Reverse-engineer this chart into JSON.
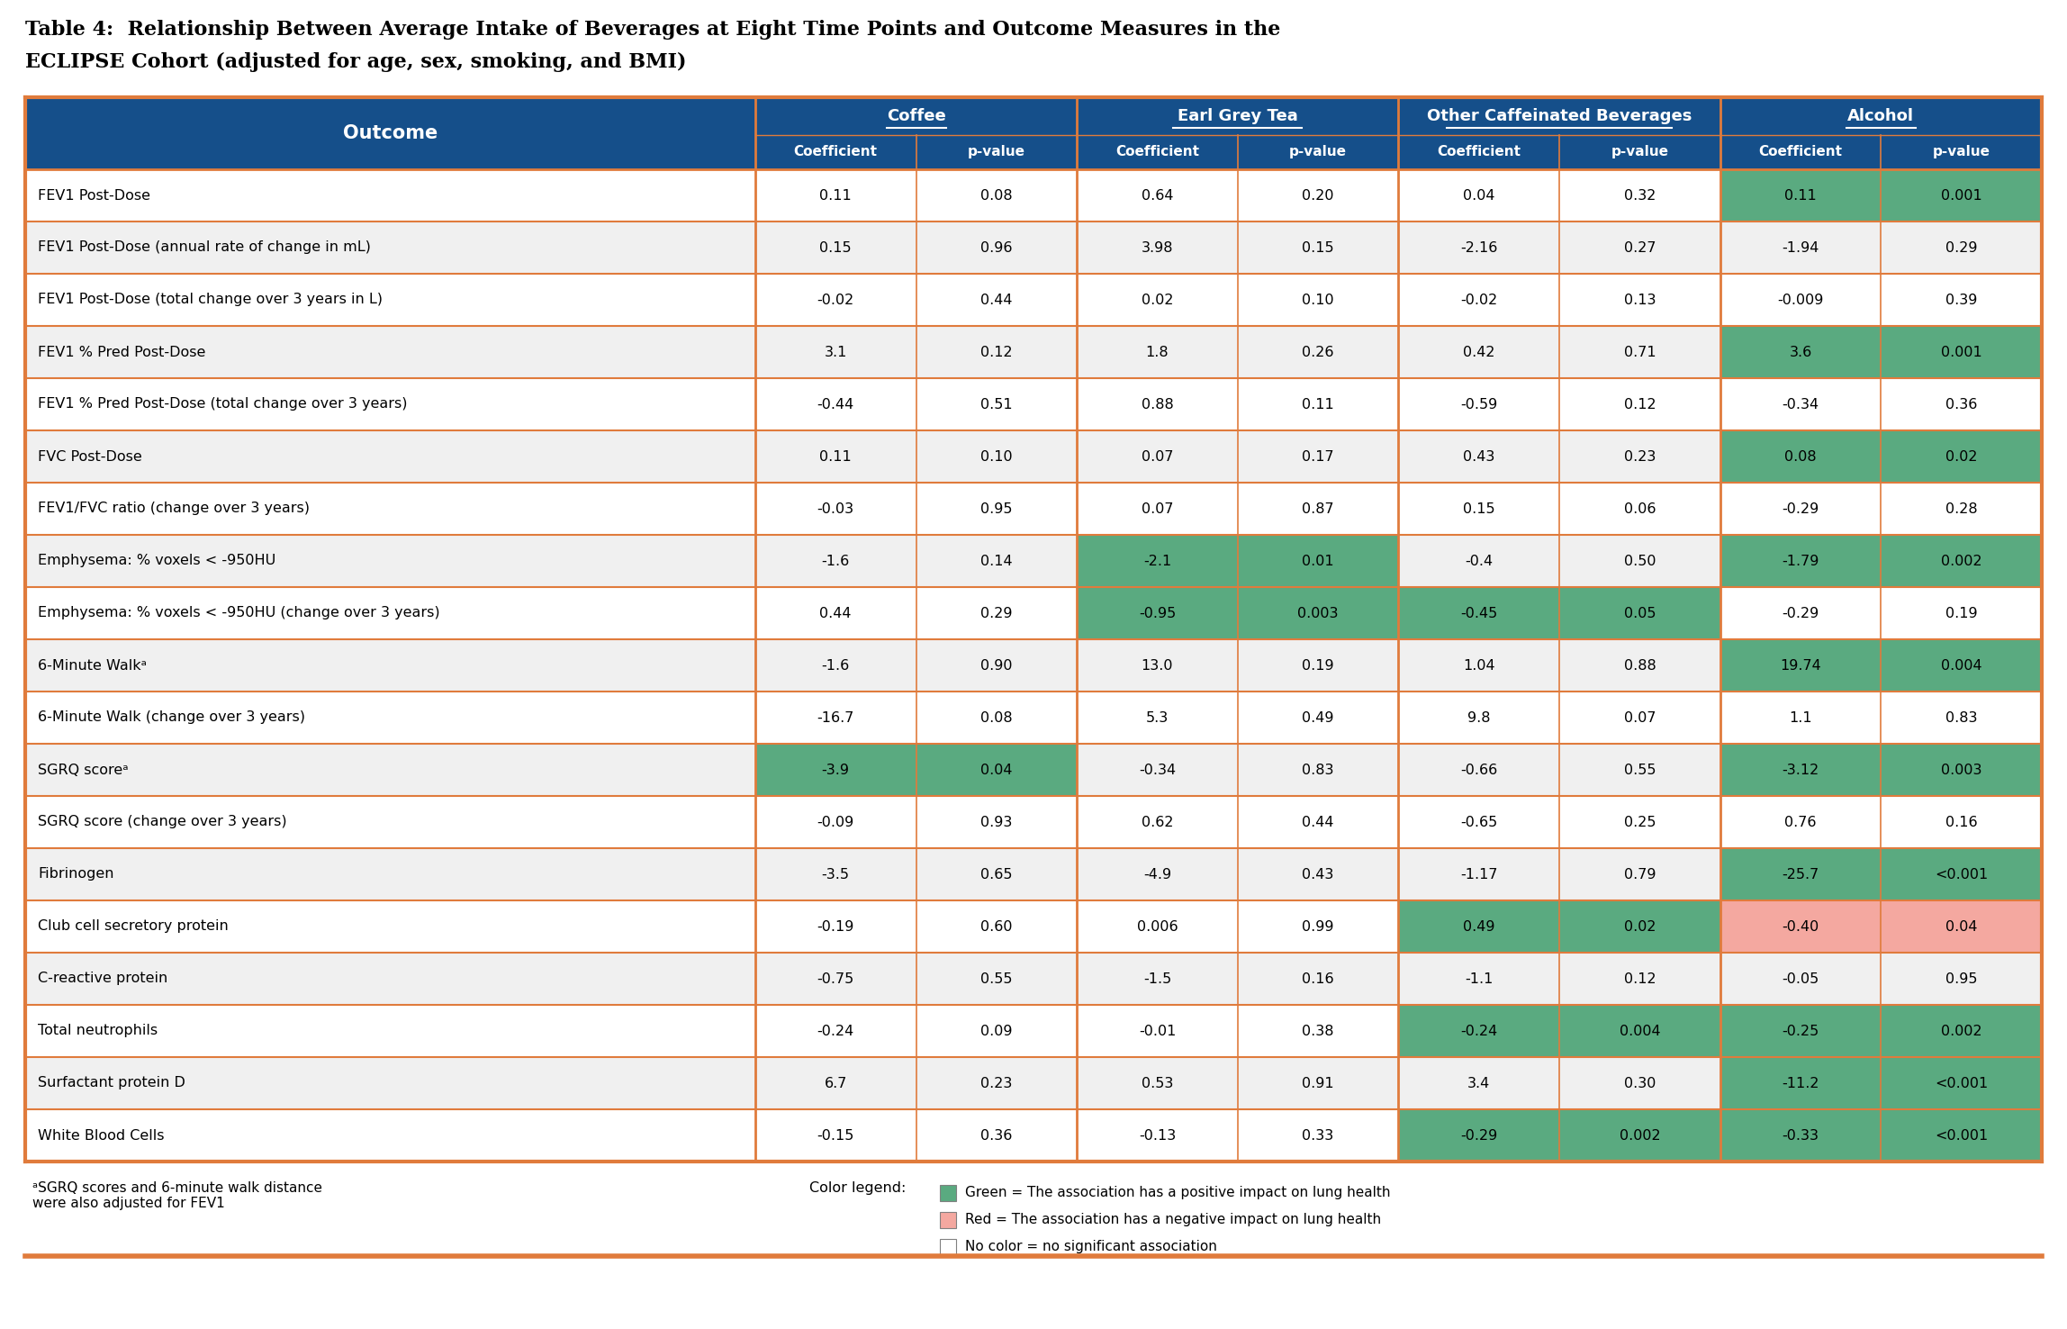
{
  "title_line1": "Table 4:  Relationship Between Average Intake of Beverages at Eight Time Points and Outcome Measures in the",
  "title_line2": "ECLIPSE Cohort (adjusted for age, sex, smoking, and BMI)",
  "header_bg": "#154f8a",
  "header_text_color": "#ffffff",
  "row_bg_odd": "#ffffff",
  "row_bg_even": "#f0f0f0",
  "border_color": "#e07b3c",
  "green_color": "#5aaa80",
  "red_color": "#f4a8a0",
  "col_groups": [
    "Coffee",
    "Earl Grey Tea",
    "Other Caffeinated Beverages",
    "Alcohol"
  ],
  "sub_cols": [
    "Coefficient",
    "p-value",
    "Coefficient",
    "p-value",
    "Coefficient",
    "p-value",
    "Coefficient",
    "p-value"
  ],
  "outcome_col": "Outcome",
  "rows": [
    {
      "outcome": "FEV1 Post-Dose",
      "vals": [
        "0.11",
        "0.08",
        "0.64",
        "0.20",
        "0.04",
        "0.32",
        "0.11",
        "0.001"
      ],
      "bgs": [
        "",
        "",
        "",
        "",
        "",
        "",
        "green",
        "green"
      ]
    },
    {
      "outcome": "FEV1 Post-Dose (annual rate of change in mL)",
      "vals": [
        "0.15",
        "0.96",
        "3.98",
        "0.15",
        "-2.16",
        "0.27",
        "-1.94",
        "0.29"
      ],
      "bgs": [
        "",
        "",
        "",
        "",
        "",
        "",
        "",
        ""
      ]
    },
    {
      "outcome": "FEV1 Post-Dose (total change over 3 years in L)",
      "vals": [
        "-0.02",
        "0.44",
        "0.02",
        "0.10",
        "-0.02",
        "0.13",
        "-0.009",
        "0.39"
      ],
      "bgs": [
        "",
        "",
        "",
        "",
        "",
        "",
        "",
        ""
      ]
    },
    {
      "outcome": "FEV1 % Pred Post-Dose",
      "vals": [
        "3.1",
        "0.12",
        "1.8",
        "0.26",
        "0.42",
        "0.71",
        "3.6",
        "0.001"
      ],
      "bgs": [
        "",
        "",
        "",
        "",
        "",
        "",
        "green",
        "green"
      ]
    },
    {
      "outcome": "FEV1 % Pred Post-Dose (total change over 3 years)",
      "vals": [
        "-0.44",
        "0.51",
        "0.88",
        "0.11",
        "-0.59",
        "0.12",
        "-0.34",
        "0.36"
      ],
      "bgs": [
        "",
        "",
        "",
        "",
        "",
        "",
        "",
        ""
      ]
    },
    {
      "outcome": "FVC Post-Dose",
      "vals": [
        "0.11",
        "0.10",
        "0.07",
        "0.17",
        "0.43",
        "0.23",
        "0.08",
        "0.02"
      ],
      "bgs": [
        "",
        "",
        "",
        "",
        "",
        "",
        "green",
        "green"
      ]
    },
    {
      "outcome": "FEV1/FVC ratio (change over 3 years)",
      "vals": [
        "-0.03",
        "0.95",
        "0.07",
        "0.87",
        "0.15",
        "0.06",
        "-0.29",
        "0.28"
      ],
      "bgs": [
        "",
        "",
        "",
        "",
        "",
        "",
        "",
        ""
      ]
    },
    {
      "outcome": "Emphysema: % voxels < -950HU",
      "vals": [
        "-1.6",
        "0.14",
        "-2.1",
        "0.01",
        "-0.4",
        "0.50",
        "-1.79",
        "0.002"
      ],
      "bgs": [
        "",
        "",
        "green",
        "green",
        "",
        "",
        "green",
        "green"
      ]
    },
    {
      "outcome": "Emphysema: % voxels < -950HU (change over 3 years)",
      "vals": [
        "0.44",
        "0.29",
        "-0.95",
        "0.003",
        "-0.45",
        "0.05",
        "-0.29",
        "0.19"
      ],
      "bgs": [
        "",
        "",
        "green",
        "green",
        "green",
        "green",
        "",
        ""
      ]
    },
    {
      "outcome": "6-Minute Walkᵃ",
      "vals": [
        "-1.6",
        "0.90",
        "13.0",
        "0.19",
        "1.04",
        "0.88",
        "19.74",
        "0.004"
      ],
      "bgs": [
        "",
        "",
        "",
        "",
        "",
        "",
        "green",
        "green"
      ]
    },
    {
      "outcome": "6-Minute Walk (change over 3 years)",
      "vals": [
        "-16.7",
        "0.08",
        "5.3",
        "0.49",
        "9.8",
        "0.07",
        "1.1",
        "0.83"
      ],
      "bgs": [
        "",
        "",
        "",
        "",
        "",
        "",
        "",
        ""
      ]
    },
    {
      "outcome": "SGRQ scoreᵃ",
      "vals": [
        "-3.9",
        "0.04",
        "-0.34",
        "0.83",
        "-0.66",
        "0.55",
        "-3.12",
        "0.003"
      ],
      "bgs": [
        "green",
        "green",
        "",
        "",
        "",
        "",
        "green",
        "green"
      ]
    },
    {
      "outcome": "SGRQ score (change over 3 years)",
      "vals": [
        "-0.09",
        "0.93",
        "0.62",
        "0.44",
        "-0.65",
        "0.25",
        "0.76",
        "0.16"
      ],
      "bgs": [
        "",
        "",
        "",
        "",
        "",
        "",
        "",
        ""
      ]
    },
    {
      "outcome": "Fibrinogen",
      "vals": [
        "-3.5",
        "0.65",
        "-4.9",
        "0.43",
        "-1.17",
        "0.79",
        "-25.7",
        "<0.001"
      ],
      "bgs": [
        "",
        "",
        "",
        "",
        "",
        "",
        "green",
        "green"
      ]
    },
    {
      "outcome": "Club cell secretory protein",
      "vals": [
        "-0.19",
        "0.60",
        "0.006",
        "0.99",
        "0.49",
        "0.02",
        "-0.40",
        "0.04"
      ],
      "bgs": [
        "",
        "",
        "",
        "",
        "green",
        "green",
        "red",
        "red"
      ]
    },
    {
      "outcome": "C-reactive protein",
      "vals": [
        "-0.75",
        "0.55",
        "-1.5",
        "0.16",
        "-1.1",
        "0.12",
        "-0.05",
        "0.95"
      ],
      "bgs": [
        "",
        "",
        "",
        "",
        "",
        "",
        "",
        ""
      ]
    },
    {
      "outcome": "Total neutrophils",
      "vals": [
        "-0.24",
        "0.09",
        "-0.01",
        "0.38",
        "-0.24",
        "0.004",
        "-0.25",
        "0.002"
      ],
      "bgs": [
        "",
        "",
        "",
        "",
        "green",
        "green",
        "green",
        "green"
      ]
    },
    {
      "outcome": "Surfactant protein D",
      "vals": [
        "6.7",
        "0.23",
        "0.53",
        "0.91",
        "3.4",
        "0.30",
        "-11.2",
        "<0.001"
      ],
      "bgs": [
        "",
        "",
        "",
        "",
        "",
        "",
        "green",
        "green"
      ]
    },
    {
      "outcome": "White Blood Cells",
      "vals": [
        "-0.15",
        "0.36",
        "-0.13",
        "0.33",
        "-0.29",
        "0.002",
        "-0.33",
        "<0.001"
      ],
      "bgs": [
        "",
        "",
        "",
        "",
        "green",
        "green",
        "green",
        "green"
      ]
    }
  ],
  "footnote_left": "ᵃSGRQ scores and 6-minute walk distance\nwere also adjusted for FEV1",
  "legend_title": "Color legend:",
  "legend_green": "Green = The association has a positive impact on lung health",
  "legend_red": "Red = The association has a negative impact on lung health",
  "legend_none": "No color = no significant association"
}
